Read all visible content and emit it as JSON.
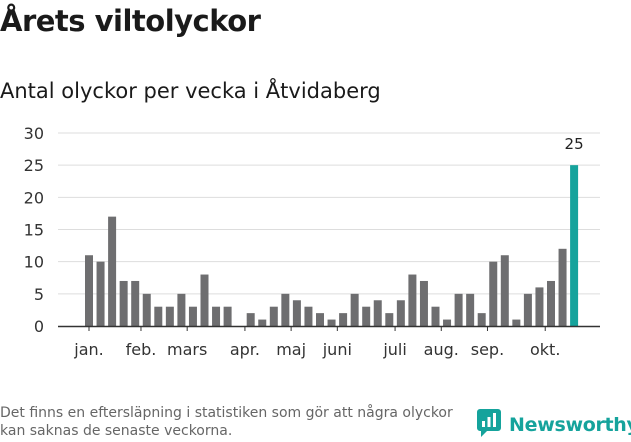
{
  "title": "Årets viltolyckor",
  "subtitle": "Antal olyckor per vecka i Åtvidaberg",
  "footnote": "Det finns en eftersläpning i statistiken som gör att några olyckor kan saknas de senaste veckorna.",
  "brand": {
    "name": "Newsworthy",
    "icon": "newsworthy-logo-icon"
  },
  "colors": {
    "bar": "#6e6e70",
    "highlight": "#15a39c",
    "grid": "#dddddd",
    "axis": "#333333"
  },
  "chart_data": {
    "type": "bar",
    "title": "Antal olyckor per vecka i Åtvidaberg",
    "xlabel": "",
    "ylabel": "",
    "ylim": [
      0,
      30
    ],
    "yticks": [
      0,
      5,
      10,
      15,
      20,
      25,
      30
    ],
    "grid": true,
    "weeks": [
      1,
      2,
      3,
      4,
      5,
      6,
      7,
      8,
      9,
      10,
      11,
      12,
      13,
      14,
      15,
      16,
      17,
      18,
      19,
      20,
      21,
      22,
      23,
      24,
      25,
      26,
      27,
      28,
      29,
      30,
      31,
      32,
      33,
      34,
      35,
      36,
      37,
      38,
      39,
      40,
      41,
      42,
      43
    ],
    "values": [
      11,
      10,
      17,
      7,
      7,
      5,
      3,
      3,
      5,
      3,
      8,
      3,
      3,
      0,
      2,
      1,
      3,
      5,
      4,
      3,
      2,
      1,
      2,
      5,
      3,
      4,
      2,
      4,
      8,
      7,
      3,
      1,
      5,
      5,
      2,
      10,
      11,
      1,
      5,
      6,
      7,
      12,
      25
    ],
    "highlight_index": 42,
    "highlight_label": "25",
    "month_labels": [
      {
        "label": "jan.",
        "week": 1
      },
      {
        "label": "feb.",
        "week": 5.5
      },
      {
        "label": "mars",
        "week": 9.5
      },
      {
        "label": "apr.",
        "week": 14.5
      },
      {
        "label": "maj",
        "week": 18.5
      },
      {
        "label": "juni",
        "week": 22.5
      },
      {
        "label": "juli",
        "week": 27.5
      },
      {
        "label": "aug.",
        "week": 31.5
      },
      {
        "label": "sep.",
        "week": 35.5
      },
      {
        "label": "okt.",
        "week": 40.5
      }
    ],
    "month_tick_weeks": [
      1,
      5.5,
      9.5,
      14.5,
      18.5,
      22.5,
      27.5,
      31.5,
      35.5,
      40.5
    ]
  }
}
